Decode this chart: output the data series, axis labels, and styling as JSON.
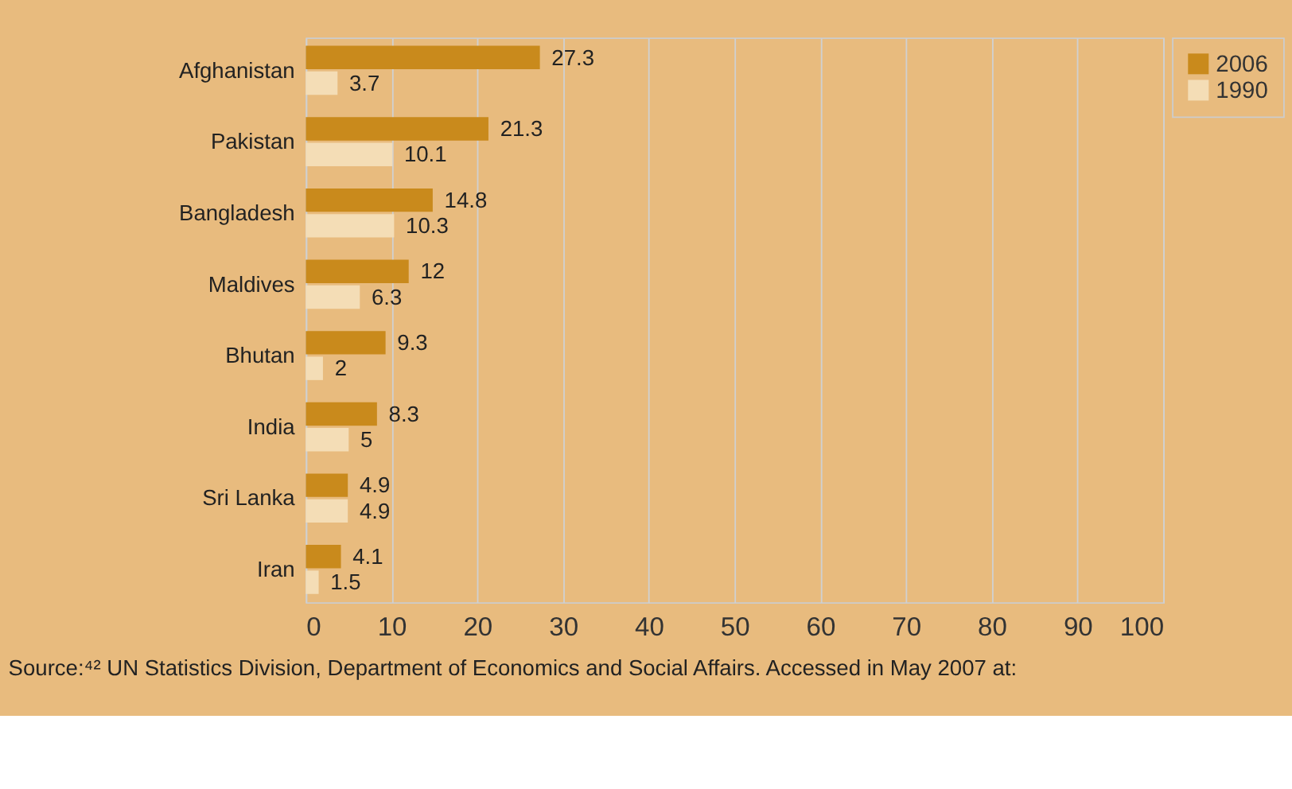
{
  "chart_data": {
    "type": "bar",
    "orientation": "horizontal",
    "categories": [
      "Afghanistan",
      "Pakistan",
      "Bangladesh",
      "Maldives",
      "Bhutan",
      "India",
      "Sri Lanka",
      "Iran"
    ],
    "series": [
      {
        "name": "2006",
        "color": "#c98a1c",
        "values": [
          27.3,
          21.3,
          14.8,
          12,
          9.3,
          8.3,
          4.9,
          4.1
        ]
      },
      {
        "name": "1990",
        "color": "#f4ddb6",
        "values": [
          3.7,
          10.1,
          10.3,
          6.3,
          2,
          5,
          4.9,
          1.5
        ]
      }
    ],
    "xlim": [
      0,
      100
    ],
    "xticks": [
      0,
      10,
      20,
      30,
      40,
      50,
      60,
      70,
      80,
      90,
      100
    ],
    "grid": "x",
    "legend": "right",
    "data_labels": true,
    "annotations": [
      "Source:⁴²  UN Statistics Division, Department of Economics and Social Affairs. Accessed in May 2007 at:"
    ]
  }
}
